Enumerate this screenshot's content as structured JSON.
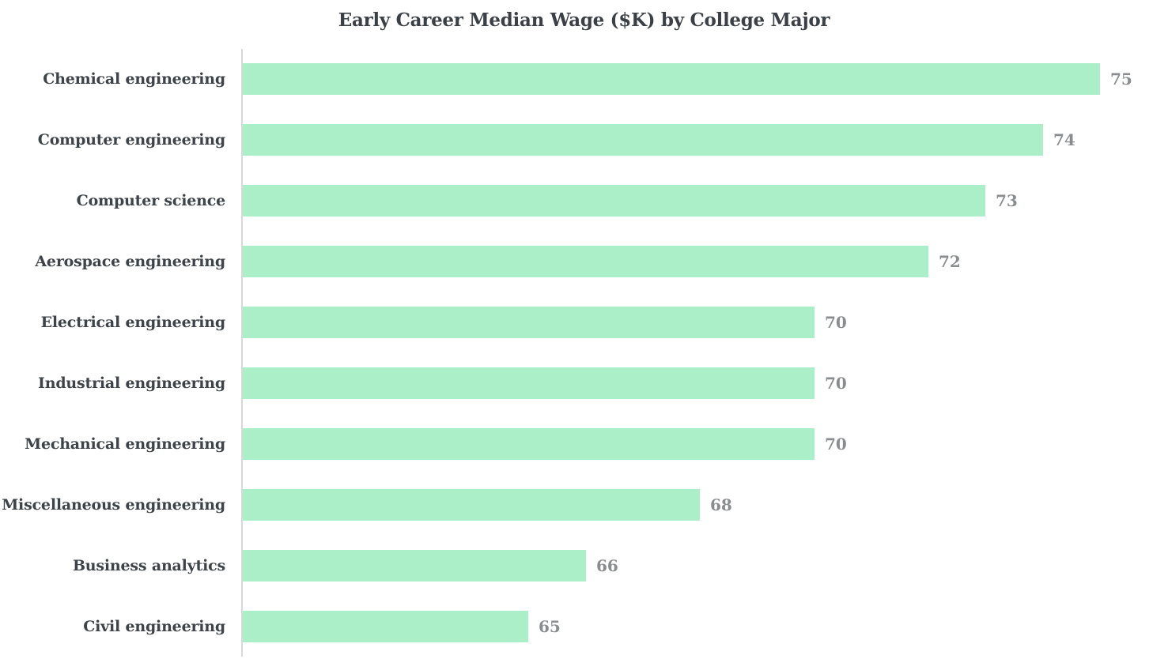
{
  "chart_data": {
    "type": "bar",
    "orientation": "horizontal",
    "title": "Early Career Median Wage ($K) by College Major",
    "categories": [
      "Chemical engineering",
      "Computer engineering",
      "Computer science",
      "Aerospace engineering",
      "Electrical engineering",
      "Industrial engineering",
      "Mechanical engineering",
      "Miscellaneous engineering",
      "Business analytics",
      "Civil engineering"
    ],
    "values": [
      75,
      74,
      73,
      72,
      70,
      70,
      70,
      68,
      66,
      65
    ],
    "xlabel": "",
    "ylabel": "",
    "xlim": [
      60,
      75
    ],
    "grid": false,
    "legend": false,
    "value_labels_shown": true,
    "sort_order": "descending"
  },
  "style": {
    "bar_color": "#aaefc7",
    "category_label_color": "#3d4449",
    "value_label_color": "#8a8d8f",
    "axis_line_color": "#d9d9d9",
    "title_color": "#3a4045",
    "background_color": "#ffffff"
  }
}
